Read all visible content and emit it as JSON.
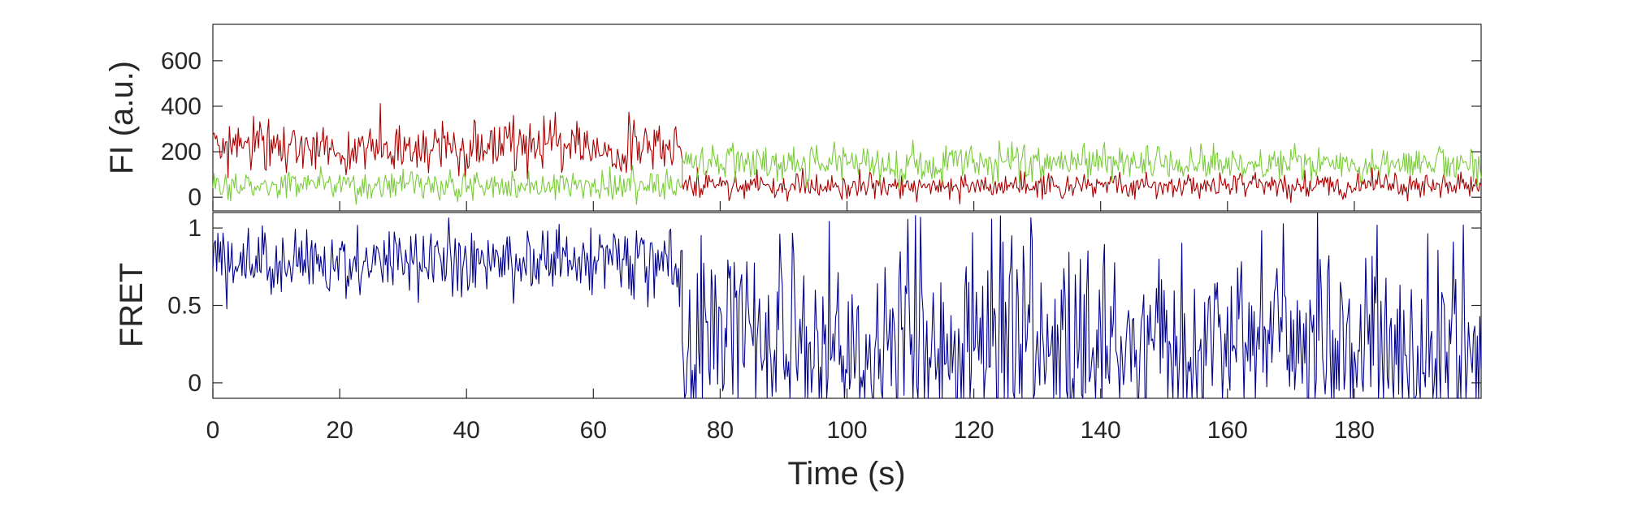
{
  "chart_data": [
    {
      "type": "line",
      "panel": "top",
      "ylabel": "FI (a.u.)",
      "xlim": [
        0,
        200
      ],
      "ylim": [
        -60,
        760
      ],
      "yticks": [
        0,
        200,
        400,
        600
      ],
      "ytick_labels": [
        "0",
        "200",
        "400",
        "600"
      ],
      "grid": false,
      "series": [
        {
          "color": "#a80000",
          "segments": [
            {
              "x_start": 0,
              "x_end": 74,
              "mean": 220,
              "noise_sd": 75
            },
            {
              "x_start": 74,
              "x_end": 200,
              "mean": 50,
              "noise_sd": 40
            }
          ]
        },
        {
          "color": "#7acc3a",
          "segments": [
            {
              "x_start": 0,
              "x_end": 74,
              "mean": 50,
              "noise_sd": 45
            },
            {
              "x_start": 74,
              "x_end": 200,
              "mean": 150,
              "noise_sd": 55
            }
          ]
        }
      ]
    },
    {
      "type": "line",
      "panel": "bottom",
      "ylabel": "FRET",
      "xlabel": "Time (s)",
      "xlim": [
        0,
        200
      ],
      "ylim": [
        -0.1,
        1.1
      ],
      "yticks": [
        0,
        0.5,
        1
      ],
      "ytick_labels": [
        "0",
        "0.5",
        "1"
      ],
      "xticks": [
        0,
        20,
        40,
        60,
        80,
        100,
        120,
        140,
        160,
        180
      ],
      "xtick_labels": [
        "0",
        "20",
        "40",
        "60",
        "80",
        "100",
        "120",
        "140",
        "160",
        "180"
      ],
      "grid": false,
      "series": [
        {
          "color": "#00008b",
          "segments": [
            {
              "x_start": 0,
              "x_end": 74,
              "mean": 0.78,
              "noise_sd": 0.16
            },
            {
              "x_start": 74,
              "x_end": 200,
              "mean": 0.25,
              "noise_sd": 0.45
            }
          ]
        }
      ]
    }
  ]
}
